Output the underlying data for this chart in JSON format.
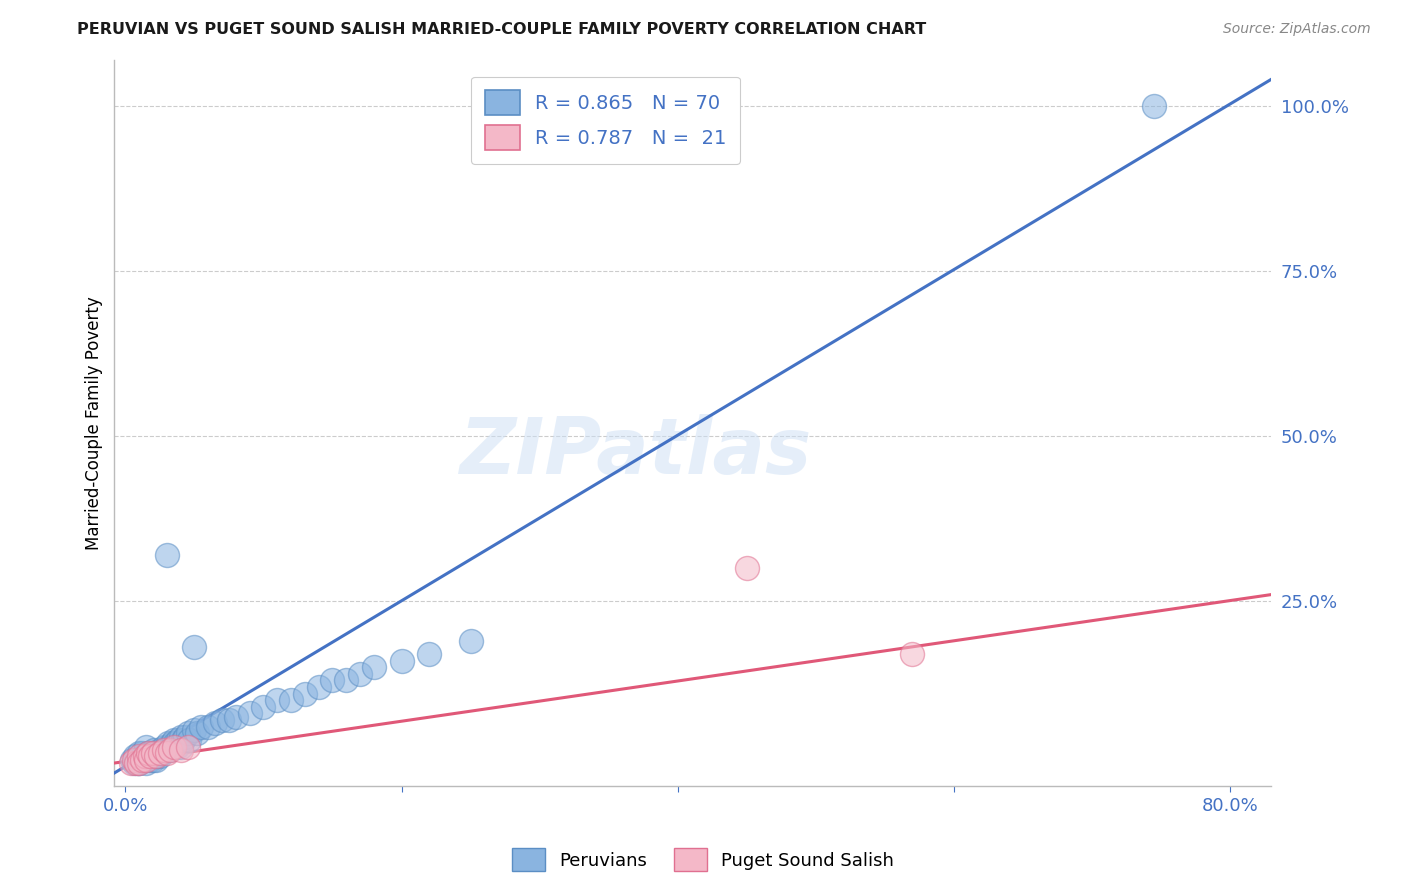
{
  "title": "PERUVIAN VS PUGET SOUND SALISH MARRIED-COUPLE FAMILY POVERTY CORRELATION CHART",
  "source": "Source: ZipAtlas.com",
  "ylabel": "Married-Couple Family Poverty",
  "xmin": -0.008,
  "xmax": 0.83,
  "ymin": -0.03,
  "ymax": 1.07,
  "x_ticks": [
    0.0,
    0.2,
    0.4,
    0.6,
    0.8
  ],
  "x_tick_labels": [
    "0.0%",
    "",
    "",
    "",
    "80.0%"
  ],
  "y_ticks_right": [
    0.25,
    0.5,
    0.75,
    1.0
  ],
  "y_tick_labels_right": [
    "25.0%",
    "50.0%",
    "75.0%",
    "100.0%"
  ],
  "blue_R": "0.865",
  "blue_N": "70",
  "pink_R": "0.787",
  "pink_N": "21",
  "blue_scatter_color": "#8ab4e0",
  "blue_edge_color": "#5b8ec4",
  "pink_scatter_color": "#f4b8c8",
  "pink_edge_color": "#e07090",
  "blue_line_color": "#4472c4",
  "pink_line_color": "#e05878",
  "legend_text_color": "#4472c4",
  "tick_color": "#4472c4",
  "watermark_text": "ZIPatlas",
  "blue_scatter_x": [
    0.005,
    0.006,
    0.007,
    0.008,
    0.009,
    0.01,
    0.01,
    0.01,
    0.012,
    0.013,
    0.014,
    0.015,
    0.015,
    0.016,
    0.017,
    0.018,
    0.018,
    0.019,
    0.02,
    0.02,
    0.021,
    0.022,
    0.022,
    0.023,
    0.024,
    0.025,
    0.025,
    0.026,
    0.027,
    0.028,
    0.029,
    0.03,
    0.031,
    0.032,
    0.033,
    0.034,
    0.035,
    0.036,
    0.037,
    0.038,
    0.04,
    0.04,
    0.042,
    0.043,
    0.045,
    0.046,
    0.05,
    0.052,
    0.055,
    0.06,
    0.065,
    0.07,
    0.075,
    0.08,
    0.09,
    0.1,
    0.11,
    0.12,
    0.13,
    0.14,
    0.15,
    0.16,
    0.17,
    0.18,
    0.2,
    0.22,
    0.25,
    0.03,
    0.05,
    0.745
  ],
  "blue_scatter_y": [
    0.01,
    0.005,
    0.015,
    0.01,
    0.005,
    0.02,
    0.01,
    0.005,
    0.02,
    0.015,
    0.01,
    0.03,
    0.005,
    0.02,
    0.015,
    0.02,
    0.01,
    0.015,
    0.02,
    0.01,
    0.025,
    0.02,
    0.01,
    0.015,
    0.02,
    0.025,
    0.015,
    0.02,
    0.025,
    0.03,
    0.025,
    0.03,
    0.035,
    0.025,
    0.03,
    0.035,
    0.04,
    0.035,
    0.03,
    0.04,
    0.045,
    0.03,
    0.04,
    0.045,
    0.05,
    0.04,
    0.055,
    0.05,
    0.06,
    0.06,
    0.065,
    0.07,
    0.07,
    0.075,
    0.08,
    0.09,
    0.1,
    0.1,
    0.11,
    0.12,
    0.13,
    0.13,
    0.14,
    0.15,
    0.16,
    0.17,
    0.19,
    0.32,
    0.18,
    1.0
  ],
  "pink_scatter_x": [
    0.004,
    0.006,
    0.008,
    0.01,
    0.01,
    0.012,
    0.014,
    0.015,
    0.016,
    0.018,
    0.02,
    0.022,
    0.025,
    0.028,
    0.03,
    0.032,
    0.035,
    0.04,
    0.045,
    0.45,
    0.57
  ],
  "pink_scatter_y": [
    0.005,
    0.01,
    0.005,
    0.015,
    0.005,
    0.01,
    0.015,
    0.01,
    0.02,
    0.015,
    0.02,
    0.015,
    0.02,
    0.025,
    0.02,
    0.025,
    0.03,
    0.025,
    0.03,
    0.3,
    0.17
  ],
  "blue_line_x": [
    -0.008,
    0.83
  ],
  "blue_line_y": [
    -0.01,
    1.04
  ],
  "pink_line_x": [
    -0.008,
    0.83
  ],
  "pink_line_y": [
    0.005,
    0.26
  ],
  "background_color": "#ffffff",
  "grid_color": "#cccccc"
}
